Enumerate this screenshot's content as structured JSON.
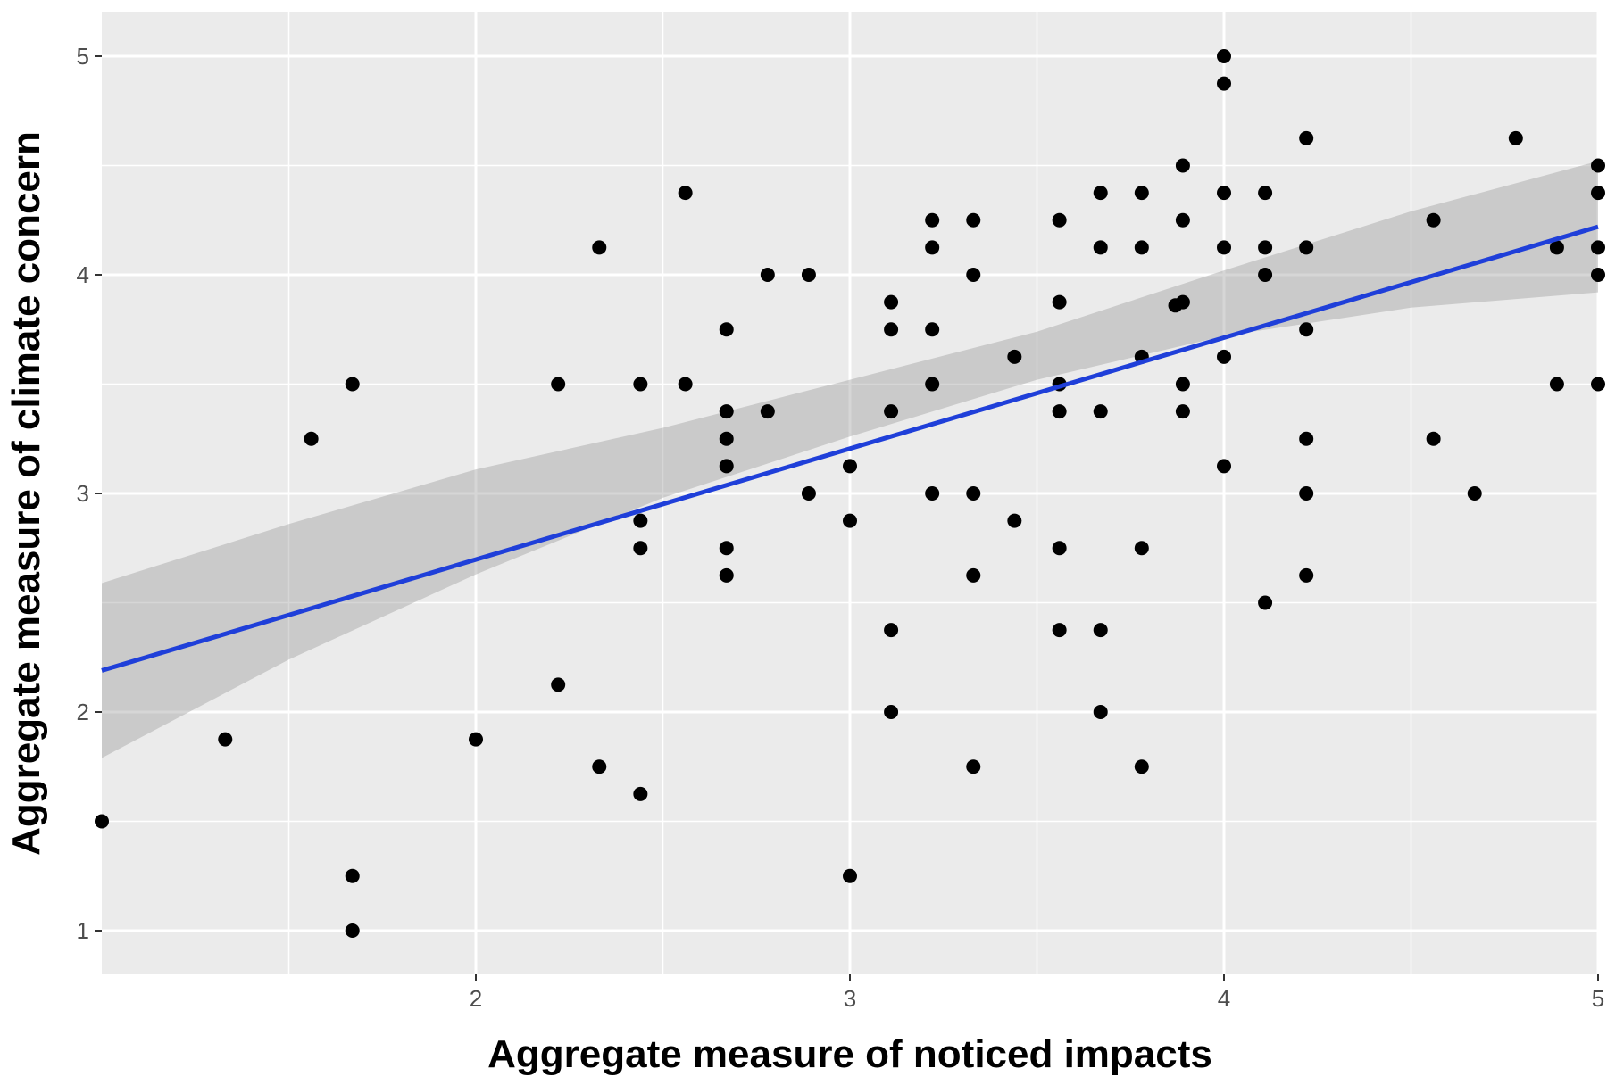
{
  "chart_data": {
    "type": "scatter",
    "title": "",
    "xlabel": "Aggregate measure of noticed impacts",
    "ylabel": "Aggregate measure of climate concern",
    "xlim": [
      1.0,
      5.0
    ],
    "ylim": [
      0.8,
      5.2
    ],
    "x_ticks": [
      2,
      3,
      4,
      5
    ],
    "y_ticks": [
      1,
      2,
      3,
      4,
      5
    ],
    "x_tick_labels": [
      "2",
      "3",
      "4",
      "5"
    ],
    "y_tick_labels": [
      "1",
      "2",
      "3",
      "4",
      "5"
    ],
    "grid": true,
    "legend": "none",
    "colors": {
      "panel": "#ebebeb",
      "grid": "#ffffff",
      "point": "#000000",
      "fit_line": "#1f3fd9",
      "confidence_band": "#999999"
    },
    "points": [
      [
        1.0,
        1.5
      ],
      [
        1.33,
        1.875
      ],
      [
        1.56,
        3.25
      ],
      [
        1.67,
        1.0
      ],
      [
        1.67,
        1.25
      ],
      [
        1.67,
        3.5
      ],
      [
        2.0,
        1.875
      ],
      [
        2.22,
        2.125
      ],
      [
        2.22,
        3.5
      ],
      [
        2.33,
        1.75
      ],
      [
        2.33,
        4.125
      ],
      [
        2.44,
        1.625
      ],
      [
        2.44,
        2.75
      ],
      [
        2.44,
        2.875
      ],
      [
        2.44,
        3.5
      ],
      [
        2.56,
        3.5
      ],
      [
        2.56,
        4.375
      ],
      [
        2.67,
        2.625
      ],
      [
        2.67,
        2.75
      ],
      [
        2.67,
        3.125
      ],
      [
        2.67,
        3.25
      ],
      [
        2.67,
        3.375
      ],
      [
        2.67,
        3.75
      ],
      [
        2.78,
        3.375
      ],
      [
        2.78,
        4.0
      ],
      [
        2.89,
        3.0
      ],
      [
        2.89,
        4.0
      ],
      [
        3.0,
        1.25
      ],
      [
        3.0,
        2.875
      ],
      [
        3.0,
        3.125
      ],
      [
        3.11,
        2.0
      ],
      [
        3.11,
        2.375
      ],
      [
        3.11,
        3.375
      ],
      [
        3.11,
        3.75
      ],
      [
        3.11,
        3.875
      ],
      [
        3.22,
        3.0
      ],
      [
        3.22,
        3.5
      ],
      [
        3.22,
        3.75
      ],
      [
        3.22,
        4.125
      ],
      [
        3.22,
        4.25
      ],
      [
        3.33,
        1.75
      ],
      [
        3.33,
        2.625
      ],
      [
        3.33,
        3.0
      ],
      [
        3.33,
        4.0
      ],
      [
        3.33,
        4.25
      ],
      [
        3.44,
        2.875
      ],
      [
        3.44,
        3.625
      ],
      [
        3.56,
        2.375
      ],
      [
        3.56,
        2.75
      ],
      [
        3.56,
        3.375
      ],
      [
        3.56,
        3.5
      ],
      [
        3.56,
        3.875
      ],
      [
        3.56,
        4.25
      ],
      [
        3.67,
        2.0
      ],
      [
        3.67,
        2.375
      ],
      [
        3.67,
        3.375
      ],
      [
        3.67,
        4.125
      ],
      [
        3.67,
        4.375
      ],
      [
        3.78,
        1.75
      ],
      [
        3.78,
        2.75
      ],
      [
        3.78,
        3.625
      ],
      [
        3.78,
        4.125
      ],
      [
        3.78,
        4.375
      ],
      [
        3.87,
        3.86
      ],
      [
        3.89,
        3.375
      ],
      [
        3.89,
        3.5
      ],
      [
        3.89,
        3.875
      ],
      [
        3.89,
        4.25
      ],
      [
        3.89,
        4.5
      ],
      [
        4.0,
        3.125
      ],
      [
        4.0,
        3.625
      ],
      [
        4.0,
        4.125
      ],
      [
        4.0,
        4.375
      ],
      [
        4.0,
        4.875
      ],
      [
        4.0,
        5.0
      ],
      [
        4.11,
        2.5
      ],
      [
        4.11,
        4.0
      ],
      [
        4.11,
        4.125
      ],
      [
        4.11,
        4.375
      ],
      [
        4.22,
        2.625
      ],
      [
        4.22,
        3.0
      ],
      [
        4.22,
        3.25
      ],
      [
        4.22,
        3.75
      ],
      [
        4.22,
        4.125
      ],
      [
        4.22,
        4.625
      ],
      [
        4.56,
        3.25
      ],
      [
        4.56,
        4.25
      ],
      [
        4.67,
        3.0
      ],
      [
        4.78,
        4.625
      ],
      [
        4.89,
        3.5
      ],
      [
        4.89,
        4.125
      ],
      [
        5.0,
        3.5
      ],
      [
        5.0,
        4.0
      ],
      [
        5.0,
        4.125
      ],
      [
        5.0,
        4.375
      ],
      [
        5.0,
        4.5
      ]
    ],
    "fit_line": {
      "x": [
        1.0,
        5.0
      ],
      "y": [
        2.19,
        4.22
      ]
    },
    "confidence_band": {
      "x": [
        1.0,
        1.5,
        2.0,
        2.5,
        3.0,
        3.5,
        4.0,
        4.5,
        5.0
      ],
      "lower": [
        1.79,
        2.24,
        2.63,
        2.98,
        3.26,
        3.52,
        3.72,
        3.85,
        3.92
      ],
      "upper": [
        2.59,
        2.86,
        3.11,
        3.3,
        3.52,
        3.74,
        4.02,
        4.29,
        4.52
      ]
    }
  }
}
